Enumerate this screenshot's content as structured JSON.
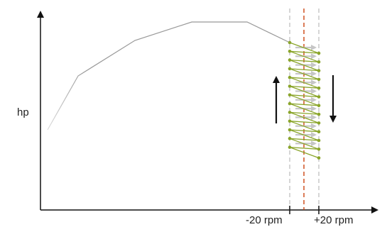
{
  "diagram": {
    "y_axis_label": "hp",
    "x_tick_left": "-20 rpm",
    "x_tick_right": "+20 rpm",
    "arrow_up": "up-arrow-icon",
    "arrow_down": "down-arrow-icon"
  },
  "colors": {
    "axis": "#111111",
    "curve": "#999999",
    "guide": "#bbbbbb",
    "center": "#cc4411",
    "zigzag": "#8aa52a",
    "shift": "#c6c6c6"
  }
}
